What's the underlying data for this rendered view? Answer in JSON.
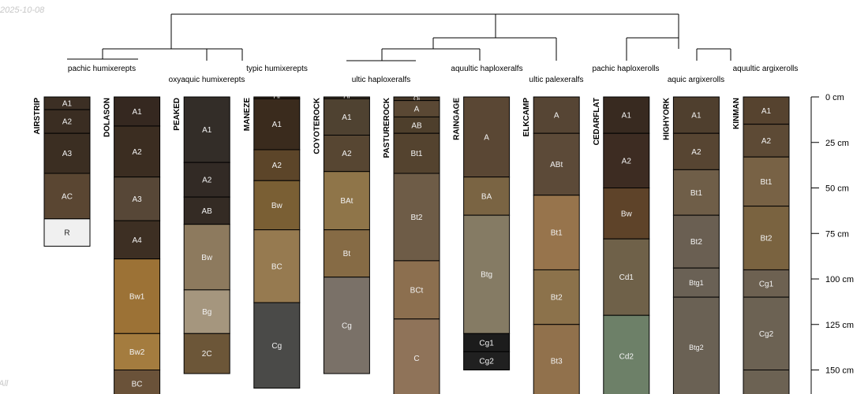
{
  "date_stamp": "2025-10-08",
  "attribution": "All",
  "depth_axis": {
    "unit": "cm",
    "ticks": [
      {
        "value": 0,
        "label": "0 cm"
      },
      {
        "value": 25,
        "label": "25 cm"
      },
      {
        "value": 50,
        "label": "50 cm"
      },
      {
        "value": 75,
        "label": "75 cm"
      },
      {
        "value": 100,
        "label": "100 cm"
      },
      {
        "value": 125,
        "label": "125 cm"
      },
      {
        "value": 150,
        "label": "150 cm"
      }
    ]
  },
  "taxa": [
    "pachic humixerepts",
    "oxyaquic humixerepts",
    "typic humixerepts",
    "ultic haploxeralfs",
    "aquultic haploxeralfs",
    "ultic palexeralfs",
    "pachic haploxerolls",
    "aquic argixerolls",
    "aquultic argixerolls"
  ],
  "profiles": [
    {
      "name": "AIRSTRIP",
      "horizons": [
        {
          "name": "A1",
          "top": 0,
          "bottom": 7,
          "color": "#3c2f24"
        },
        {
          "name": "A2",
          "top": 7,
          "bottom": 20,
          "color": "#3a2d22"
        },
        {
          "name": "A3",
          "top": 20,
          "bottom": 42,
          "color": "#3b2e22"
        },
        {
          "name": "AC",
          "top": 42,
          "bottom": 67,
          "color": "#5a4632"
        },
        {
          "name": "R",
          "top": 67,
          "bottom": 82,
          "color": "#f0f0f0"
        }
      ]
    },
    {
      "name": "DOLASON",
      "horizons": [
        {
          "name": "A1",
          "top": 0,
          "bottom": 16,
          "color": "#352820"
        },
        {
          "name": "A2",
          "top": 16,
          "bottom": 44,
          "color": "#3b2d21"
        },
        {
          "name": "A3",
          "top": 44,
          "bottom": 68,
          "color": "#574737"
        },
        {
          "name": "A4",
          "top": 68,
          "bottom": 89,
          "color": "#3d2f23"
        },
        {
          "name": "Bw1",
          "top": 89,
          "bottom": 130,
          "color": "#9c7236"
        },
        {
          "name": "Bw2",
          "top": 130,
          "bottom": 150,
          "color": "#a47c3f"
        },
        {
          "name": "BC",
          "top": 150,
          "bottom": 165,
          "color": "#6a5239"
        }
      ]
    },
    {
      "name": "PEAKED",
      "horizons": [
        {
          "name": "A1",
          "top": 0,
          "bottom": 36,
          "color": "#332d28"
        },
        {
          "name": "A2",
          "top": 36,
          "bottom": 55,
          "color": "#322a25"
        },
        {
          "name": "AB",
          "top": 55,
          "bottom": 70,
          "color": "#342b24"
        },
        {
          "name": "Bw",
          "top": 70,
          "bottom": 106,
          "color": "#8d7a5e"
        },
        {
          "name": "Bg",
          "top": 106,
          "bottom": 130,
          "color": "#a5967e"
        },
        {
          "name": "2C",
          "top": 130,
          "bottom": 152,
          "color": "#6c5638"
        }
      ]
    },
    {
      "name": "MANEZE",
      "horizons": [
        {
          "name": "Oi",
          "top": 0,
          "bottom": 1,
          "color": "#332618"
        },
        {
          "name": "A1",
          "top": 1,
          "bottom": 29,
          "color": "#3a2b1d"
        },
        {
          "name": "A2",
          "top": 29,
          "bottom": 46,
          "color": "#5c4529"
        },
        {
          "name": "Bw",
          "top": 46,
          "bottom": 73,
          "color": "#7a5f34"
        },
        {
          "name": "BC",
          "top": 73,
          "bottom": 113,
          "color": "#967a50"
        },
        {
          "name": "Cg",
          "top": 113,
          "bottom": 160,
          "color": "#4a4a48"
        }
      ]
    },
    {
      "name": "COYOTEROCK",
      "horizons": [
        {
          "name": "Oi",
          "top": 0,
          "bottom": 1,
          "color": "#3d3226"
        },
        {
          "name": "A1",
          "top": 1,
          "bottom": 21,
          "color": "#4f4231"
        },
        {
          "name": "A2",
          "top": 21,
          "bottom": 41,
          "color": "#574632"
        },
        {
          "name": "BAt",
          "top": 41,
          "bottom": 73,
          "color": "#8f7549"
        },
        {
          "name": "Bt",
          "top": 73,
          "bottom": 99,
          "color": "#866b45"
        },
        {
          "name": "Cg",
          "top": 99,
          "bottom": 152,
          "color": "#7a7168"
        }
      ]
    },
    {
      "name": "PASTUREROCK",
      "horizons": [
        {
          "name": "Oi",
          "top": 0,
          "bottom": 2,
          "color": "#463829"
        },
        {
          "name": "A",
          "top": 2,
          "bottom": 11,
          "color": "#5a4834"
        },
        {
          "name": "AB",
          "top": 11,
          "bottom": 20,
          "color": "#4e3f2c"
        },
        {
          "name": "Bt1",
          "top": 20,
          "bottom": 42,
          "color": "#54432f"
        },
        {
          "name": "Bt2",
          "top": 42,
          "bottom": 90,
          "color": "#6e5c47"
        },
        {
          "name": "BCt",
          "top": 90,
          "bottom": 122,
          "color": "#8c6f4f"
        },
        {
          "name": "C",
          "top": 122,
          "bottom": 165,
          "color": "#8f7359"
        }
      ]
    },
    {
      "name": "RAINGAGE",
      "horizons": [
        {
          "name": "A",
          "top": 0,
          "bottom": 44,
          "color": "#5a4734"
        },
        {
          "name": "BA",
          "top": 44,
          "bottom": 65,
          "color": "#7a6443"
        },
        {
          "name": "Btg",
          "top": 65,
          "bottom": 130,
          "color": "#857b64"
        },
        {
          "name": "Cg1",
          "top": 130,
          "bottom": 140,
          "color": "#1c1c1c"
        },
        {
          "name": "Cg2",
          "top": 140,
          "bottom": 150,
          "color": "#202020"
        }
      ]
    },
    {
      "name": "ELKCAMP",
      "horizons": [
        {
          "name": "A",
          "top": 0,
          "bottom": 20,
          "color": "#564534"
        },
        {
          "name": "ABt",
          "top": 20,
          "bottom": 54,
          "color": "#5c4a38"
        },
        {
          "name": "Bt1",
          "top": 54,
          "bottom": 95,
          "color": "#97744c"
        },
        {
          "name": "Bt2",
          "top": 95,
          "bottom": 125,
          "color": "#8c724b"
        },
        {
          "name": "Bt3",
          "top": 125,
          "bottom": 165,
          "color": "#91714c"
        }
      ]
    },
    {
      "name": "CEDARFLAT",
      "horizons": [
        {
          "name": "A1",
          "top": 0,
          "bottom": 20,
          "color": "#382a20"
        },
        {
          "name": "A2",
          "top": 20,
          "bottom": 50,
          "color": "#3d2c22"
        },
        {
          "name": "Bw",
          "top": 50,
          "bottom": 78,
          "color": "#5e4329"
        },
        {
          "name": "Cd1",
          "top": 78,
          "bottom": 120,
          "color": "#6f6149"
        },
        {
          "name": "Cd2",
          "top": 120,
          "bottom": 165,
          "color": "#6d8068"
        }
      ]
    },
    {
      "name": "HIGHYORK",
      "horizons": [
        {
          "name": "A1",
          "top": 0,
          "bottom": 20,
          "color": "#4f3f2e"
        },
        {
          "name": "A2",
          "top": 20,
          "bottom": 40,
          "color": "#574532"
        },
        {
          "name": "Bt1",
          "top": 40,
          "bottom": 65,
          "color": "#6f5e48"
        },
        {
          "name": "Bt2",
          "top": 65,
          "bottom": 94,
          "color": "#6a5f52"
        },
        {
          "name": "Btg1",
          "top": 94,
          "bottom": 110,
          "color": "#6a6155"
        },
        {
          "name": "Btg2",
          "top": 110,
          "bottom": 165,
          "color": "#6a6154"
        }
      ]
    },
    {
      "name": "KINMAN",
      "horizons": [
        {
          "name": "A1",
          "top": 0,
          "bottom": 15,
          "color": "#56432f"
        },
        {
          "name": "A2",
          "top": 15,
          "bottom": 33,
          "color": "#5d4a35"
        },
        {
          "name": "Bt1",
          "top": 33,
          "bottom": 60,
          "color": "#786245"
        },
        {
          "name": "Bt2",
          "top": 60,
          "bottom": 95,
          "color": "#7a6340"
        },
        {
          "name": "Cg1",
          "top": 95,
          "bottom": 110,
          "color": "#6d6151"
        },
        {
          "name": "Cg2",
          "top": 110,
          "bottom": 150,
          "color": "#6c6253"
        },
        {
          "name": "",
          "top": 150,
          "bottom": 165,
          "color": "#6c6253"
        }
      ]
    }
  ]
}
